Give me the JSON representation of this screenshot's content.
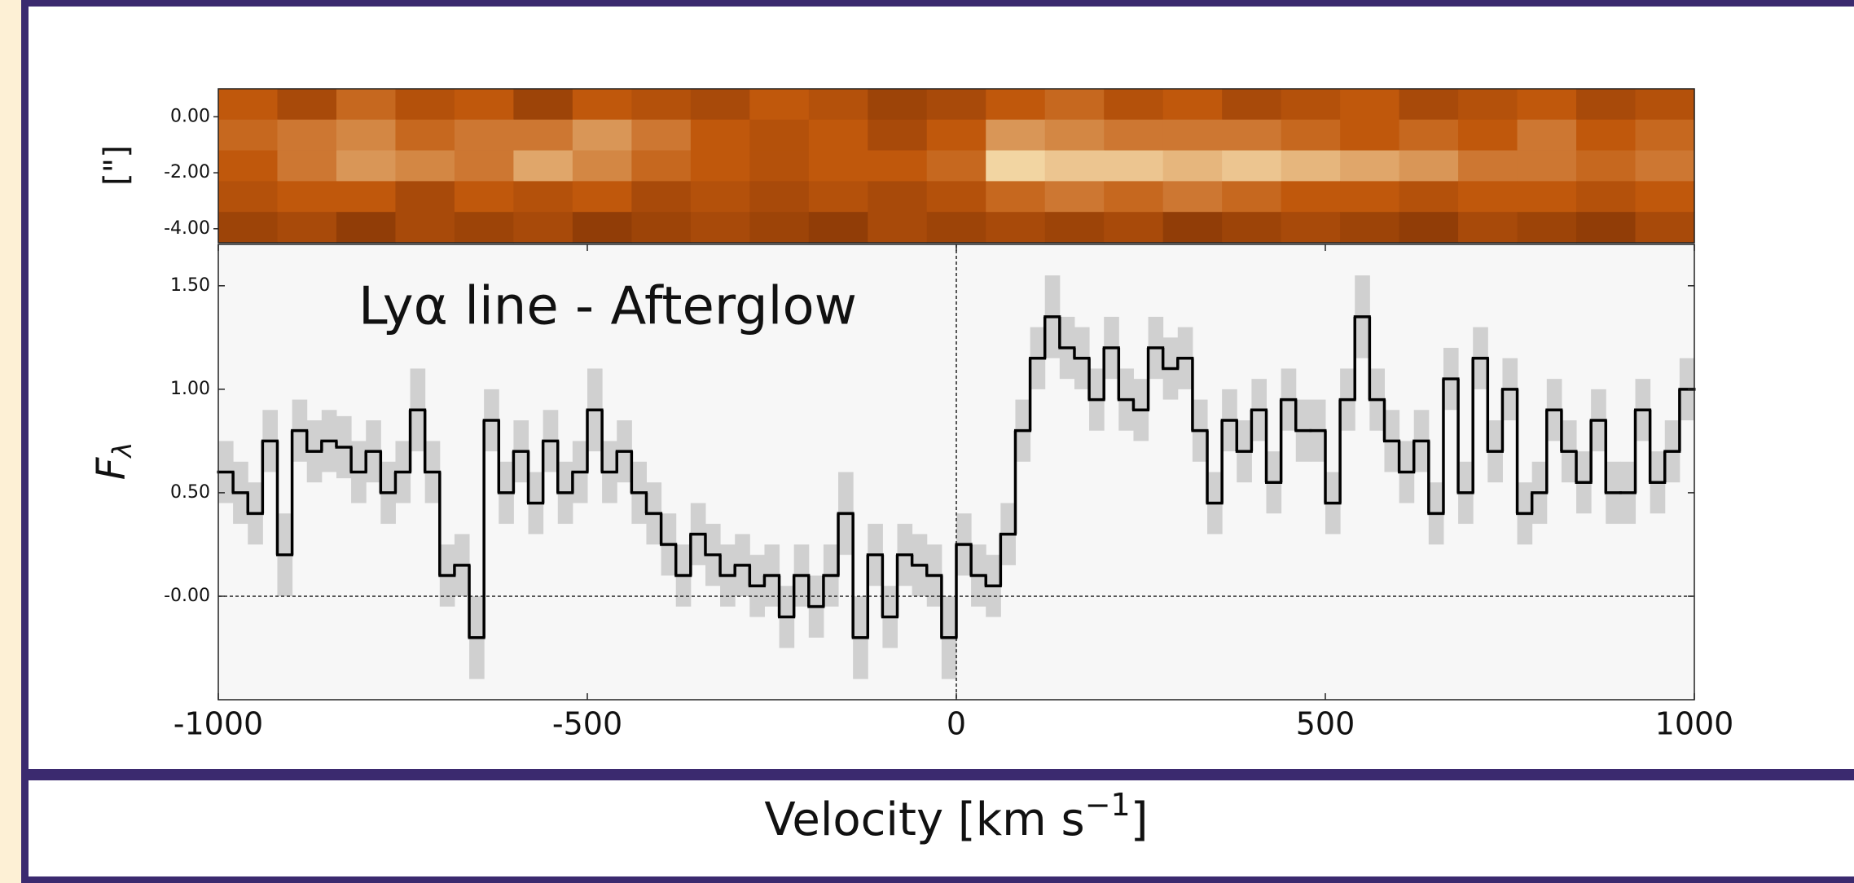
{
  "chart_data": [
    {
      "type": "heatmap",
      "ylabel": "[\"]",
      "xlim": [
        -1000,
        1000
      ],
      "ylim": [
        -4.5,
        1
      ],
      "yticks": [
        {
          "value": 0,
          "label": "0.00"
        },
        {
          "value": -2,
          "label": "-2.00"
        },
        {
          "value": -4,
          "label": "-4.00"
        }
      ],
      "colormap": [
        "#4a1400",
        "#c0580c",
        "#fff4c8"
      ],
      "data": [
        [
          0.5,
          0.4,
          0.55,
          0.45,
          0.5,
          0.35,
          0.5,
          0.45,
          0.4,
          0.5,
          0.45,
          0.35,
          0.4,
          0.5,
          0.55,
          0.45,
          0.5,
          0.4,
          0.45,
          0.5,
          0.4,
          0.45,
          0.5,
          0.4,
          0.45
        ],
        [
          0.55,
          0.6,
          0.65,
          0.55,
          0.6,
          0.6,
          0.7,
          0.6,
          0.5,
          0.45,
          0.5,
          0.4,
          0.5,
          0.7,
          0.65,
          0.6,
          0.6,
          0.6,
          0.55,
          0.5,
          0.55,
          0.5,
          0.6,
          0.5,
          0.55
        ],
        [
          0.5,
          0.6,
          0.7,
          0.65,
          0.6,
          0.75,
          0.65,
          0.55,
          0.5,
          0.45,
          0.5,
          0.5,
          0.55,
          0.9,
          0.85,
          0.85,
          0.8,
          0.85,
          0.8,
          0.75,
          0.7,
          0.6,
          0.6,
          0.55,
          0.6
        ],
        [
          0.45,
          0.5,
          0.5,
          0.4,
          0.5,
          0.45,
          0.5,
          0.4,
          0.45,
          0.4,
          0.45,
          0.4,
          0.45,
          0.55,
          0.6,
          0.55,
          0.6,
          0.55,
          0.5,
          0.5,
          0.45,
          0.5,
          0.5,
          0.45,
          0.5
        ],
        [
          0.35,
          0.4,
          0.3,
          0.4,
          0.35,
          0.4,
          0.3,
          0.35,
          0.4,
          0.35,
          0.3,
          0.4,
          0.35,
          0.4,
          0.35,
          0.4,
          0.3,
          0.35,
          0.4,
          0.35,
          0.3,
          0.4,
          0.35,
          0.3,
          0.4
        ]
      ]
    },
    {
      "type": "step",
      "annotation": "Lyα line - Afterglow",
      "ylabel": [
        "F",
        "λ"
      ],
      "xlabel": [
        "Velocity [km s",
        "−1",
        "]"
      ],
      "xlim": [
        -1000,
        1000
      ],
      "ylim": [
        -0.5,
        1.7
      ],
      "xticks": [
        -1000,
        -500,
        0,
        500,
        1000
      ],
      "yticks": [
        {
          "value": 1.5,
          "label": "1.50"
        },
        {
          "value": 1,
          "label": "1.00"
        },
        {
          "value": 0.5,
          "label": "0.50"
        },
        {
          "value": 0,
          "label": "-0.00"
        }
      ],
      "reference_lines": {
        "x": 0,
        "y": 0
      },
      "color": "#000000",
      "error_color": "#d0d0d0",
      "x": [
        -1000,
        -980,
        -960,
        -940,
        -920,
        -900,
        -880,
        -860,
        -840,
        -820,
        -800,
        -780,
        -760,
        -740,
        -720,
        -700,
        -680,
        -660,
        -640,
        -620,
        -600,
        -580,
        -560,
        -540,
        -520,
        -500,
        -480,
        -460,
        -440,
        -420,
        -400,
        -380,
        -360,
        -340,
        -320,
        -300,
        -280,
        -260,
        -240,
        -220,
        -200,
        -180,
        -160,
        -140,
        -120,
        -100,
        -80,
        -60,
        -40,
        -20,
        0,
        20,
        40,
        60,
        80,
        100,
        120,
        140,
        160,
        180,
        200,
        220,
        240,
        260,
        280,
        300,
        320,
        340,
        360,
        380,
        400,
        420,
        440,
        460,
        480,
        500,
        520,
        540,
        560,
        580,
        600,
        620,
        640,
        660,
        680,
        700,
        720,
        740,
        760,
        780,
        800,
        820,
        840,
        860,
        880,
        900,
        920,
        940,
        960,
        980
      ],
      "values": [
        0.6,
        0.5,
        0.4,
        0.75,
        0.2,
        0.8,
        0.7,
        0.75,
        0.72,
        0.6,
        0.7,
        0.5,
        0.6,
        0.9,
        0.6,
        0.1,
        0.15,
        -0.2,
        0.85,
        0.5,
        0.7,
        0.45,
        0.75,
        0.5,
        0.6,
        0.9,
        0.6,
        0.7,
        0.5,
        0.4,
        0.25,
        0.1,
        0.3,
        0.2,
        0.1,
        0.15,
        0.05,
        0.1,
        -0.1,
        0.1,
        -0.05,
        0.1,
        0.4,
        -0.2,
        0.2,
        -0.1,
        0.2,
        0.15,
        0.1,
        -0.2,
        0.25,
        0.1,
        0.05,
        0.3,
        0.8,
        1.15,
        1.35,
        1.2,
        1.15,
        0.95,
        1.2,
        0.95,
        0.9,
        1.2,
        1.1,
        1.15,
        0.8,
        0.45,
        0.85,
        0.7,
        0.9,
        0.55,
        0.95,
        0.8,
        0.8,
        0.45,
        0.95,
        1.35,
        0.95,
        0.75,
        0.6,
        0.75,
        0.4,
        1.05,
        0.5,
        1.15,
        0.7,
        1.0,
        0.4,
        0.5,
        0.9,
        0.7,
        0.55,
        0.85,
        0.5,
        0.5,
        0.9,
        0.55,
        0.7,
        1.0
      ],
      "errors": [
        0.15,
        0.15,
        0.15,
        0.15,
        0.2,
        0.15,
        0.15,
        0.15,
        0.15,
        0.15,
        0.15,
        0.15,
        0.15,
        0.2,
        0.15,
        0.15,
        0.15,
        0.2,
        0.15,
        0.15,
        0.15,
        0.15,
        0.15,
        0.15,
        0.15,
        0.2,
        0.15,
        0.15,
        0.15,
        0.15,
        0.15,
        0.15,
        0.15,
        0.15,
        0.15,
        0.15,
        0.15,
        0.15,
        0.15,
        0.15,
        0.15,
        0.15,
        0.2,
        0.2,
        0.15,
        0.15,
        0.15,
        0.15,
        0.15,
        0.2,
        0.15,
        0.15,
        0.15,
        0.15,
        0.15,
        0.15,
        0.2,
        0.15,
        0.15,
        0.15,
        0.15,
        0.15,
        0.15,
        0.15,
        0.15,
        0.15,
        0.15,
        0.15,
        0.15,
        0.15,
        0.15,
        0.15,
        0.15,
        0.15,
        0.15,
        0.15,
        0.15,
        0.2,
        0.15,
        0.15,
        0.15,
        0.15,
        0.15,
        0.15,
        0.15,
        0.15,
        0.15,
        0.15,
        0.15,
        0.15,
        0.15,
        0.15,
        0.15,
        0.15,
        0.15,
        0.15,
        0.15,
        0.15,
        0.15,
        0.15
      ]
    }
  ]
}
